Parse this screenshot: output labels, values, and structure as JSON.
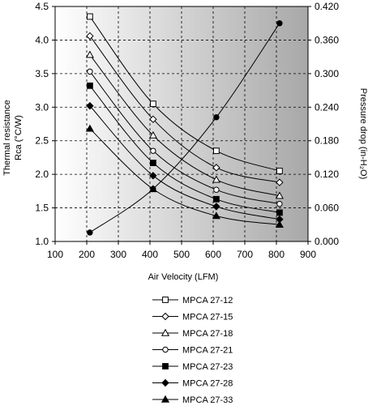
{
  "chart_data": {
    "type": "line",
    "xlabel": "Air Velocity (LFM)",
    "ylabel_left": [
      "Thermal resistance",
      "Rca (°C/W)"
    ],
    "ylabel_right": "Pressure drop (in-H₂O)",
    "xlim": [
      100,
      900
    ],
    "xticks": [
      "100",
      "200",
      "300",
      "400",
      "500",
      "600",
      "700",
      "800",
      "900"
    ],
    "ylim_left": [
      1.0,
      4.5
    ],
    "yticks_left": [
      "1.0",
      "1.5",
      "2.0",
      "2.5",
      "3.0",
      "3.5",
      "4.0",
      "4.5"
    ],
    "ylim_right": [
      0.0,
      0.42
    ],
    "yticks_right": [
      "0.000",
      "0.060",
      "0.120",
      "0.180",
      "0.240",
      "0.300",
      "0.360",
      "0.420"
    ],
    "grid": true,
    "x": [
      210,
      410,
      610,
      810
    ],
    "series": [
      {
        "name": "MPCA 27-12",
        "marker": "square-open",
        "values": [
          4.35,
          3.05,
          2.35,
          2.05
        ]
      },
      {
        "name": "MPCA 27-15",
        "marker": "diamond-open",
        "values": [
          4.06,
          2.82,
          2.1,
          1.88
        ]
      },
      {
        "name": "MPCA 27-18",
        "marker": "triangle-open",
        "values": [
          3.78,
          2.58,
          1.92,
          1.68
        ]
      },
      {
        "name": "MPCA 27-21",
        "marker": "circle-open",
        "values": [
          3.53,
          2.35,
          1.77,
          1.56
        ]
      },
      {
        "name": "MPCA 27-23",
        "marker": "square-filled",
        "values": [
          3.32,
          2.17,
          1.63,
          1.43
        ]
      },
      {
        "name": "MPCA 27-28",
        "marker": "diamond-filled",
        "values": [
          3.02,
          1.98,
          1.52,
          1.33
        ]
      },
      {
        "name": "MPCA 27-33",
        "marker": "triangle-filled",
        "values": [
          2.68,
          1.78,
          1.38,
          1.25
        ]
      }
    ],
    "pressure_series": {
      "marker": "circle-filled",
      "axis": "right",
      "values": [
        0.016,
        0.094,
        0.222,
        0.39
      ]
    },
    "legend_position": "bottom"
  }
}
